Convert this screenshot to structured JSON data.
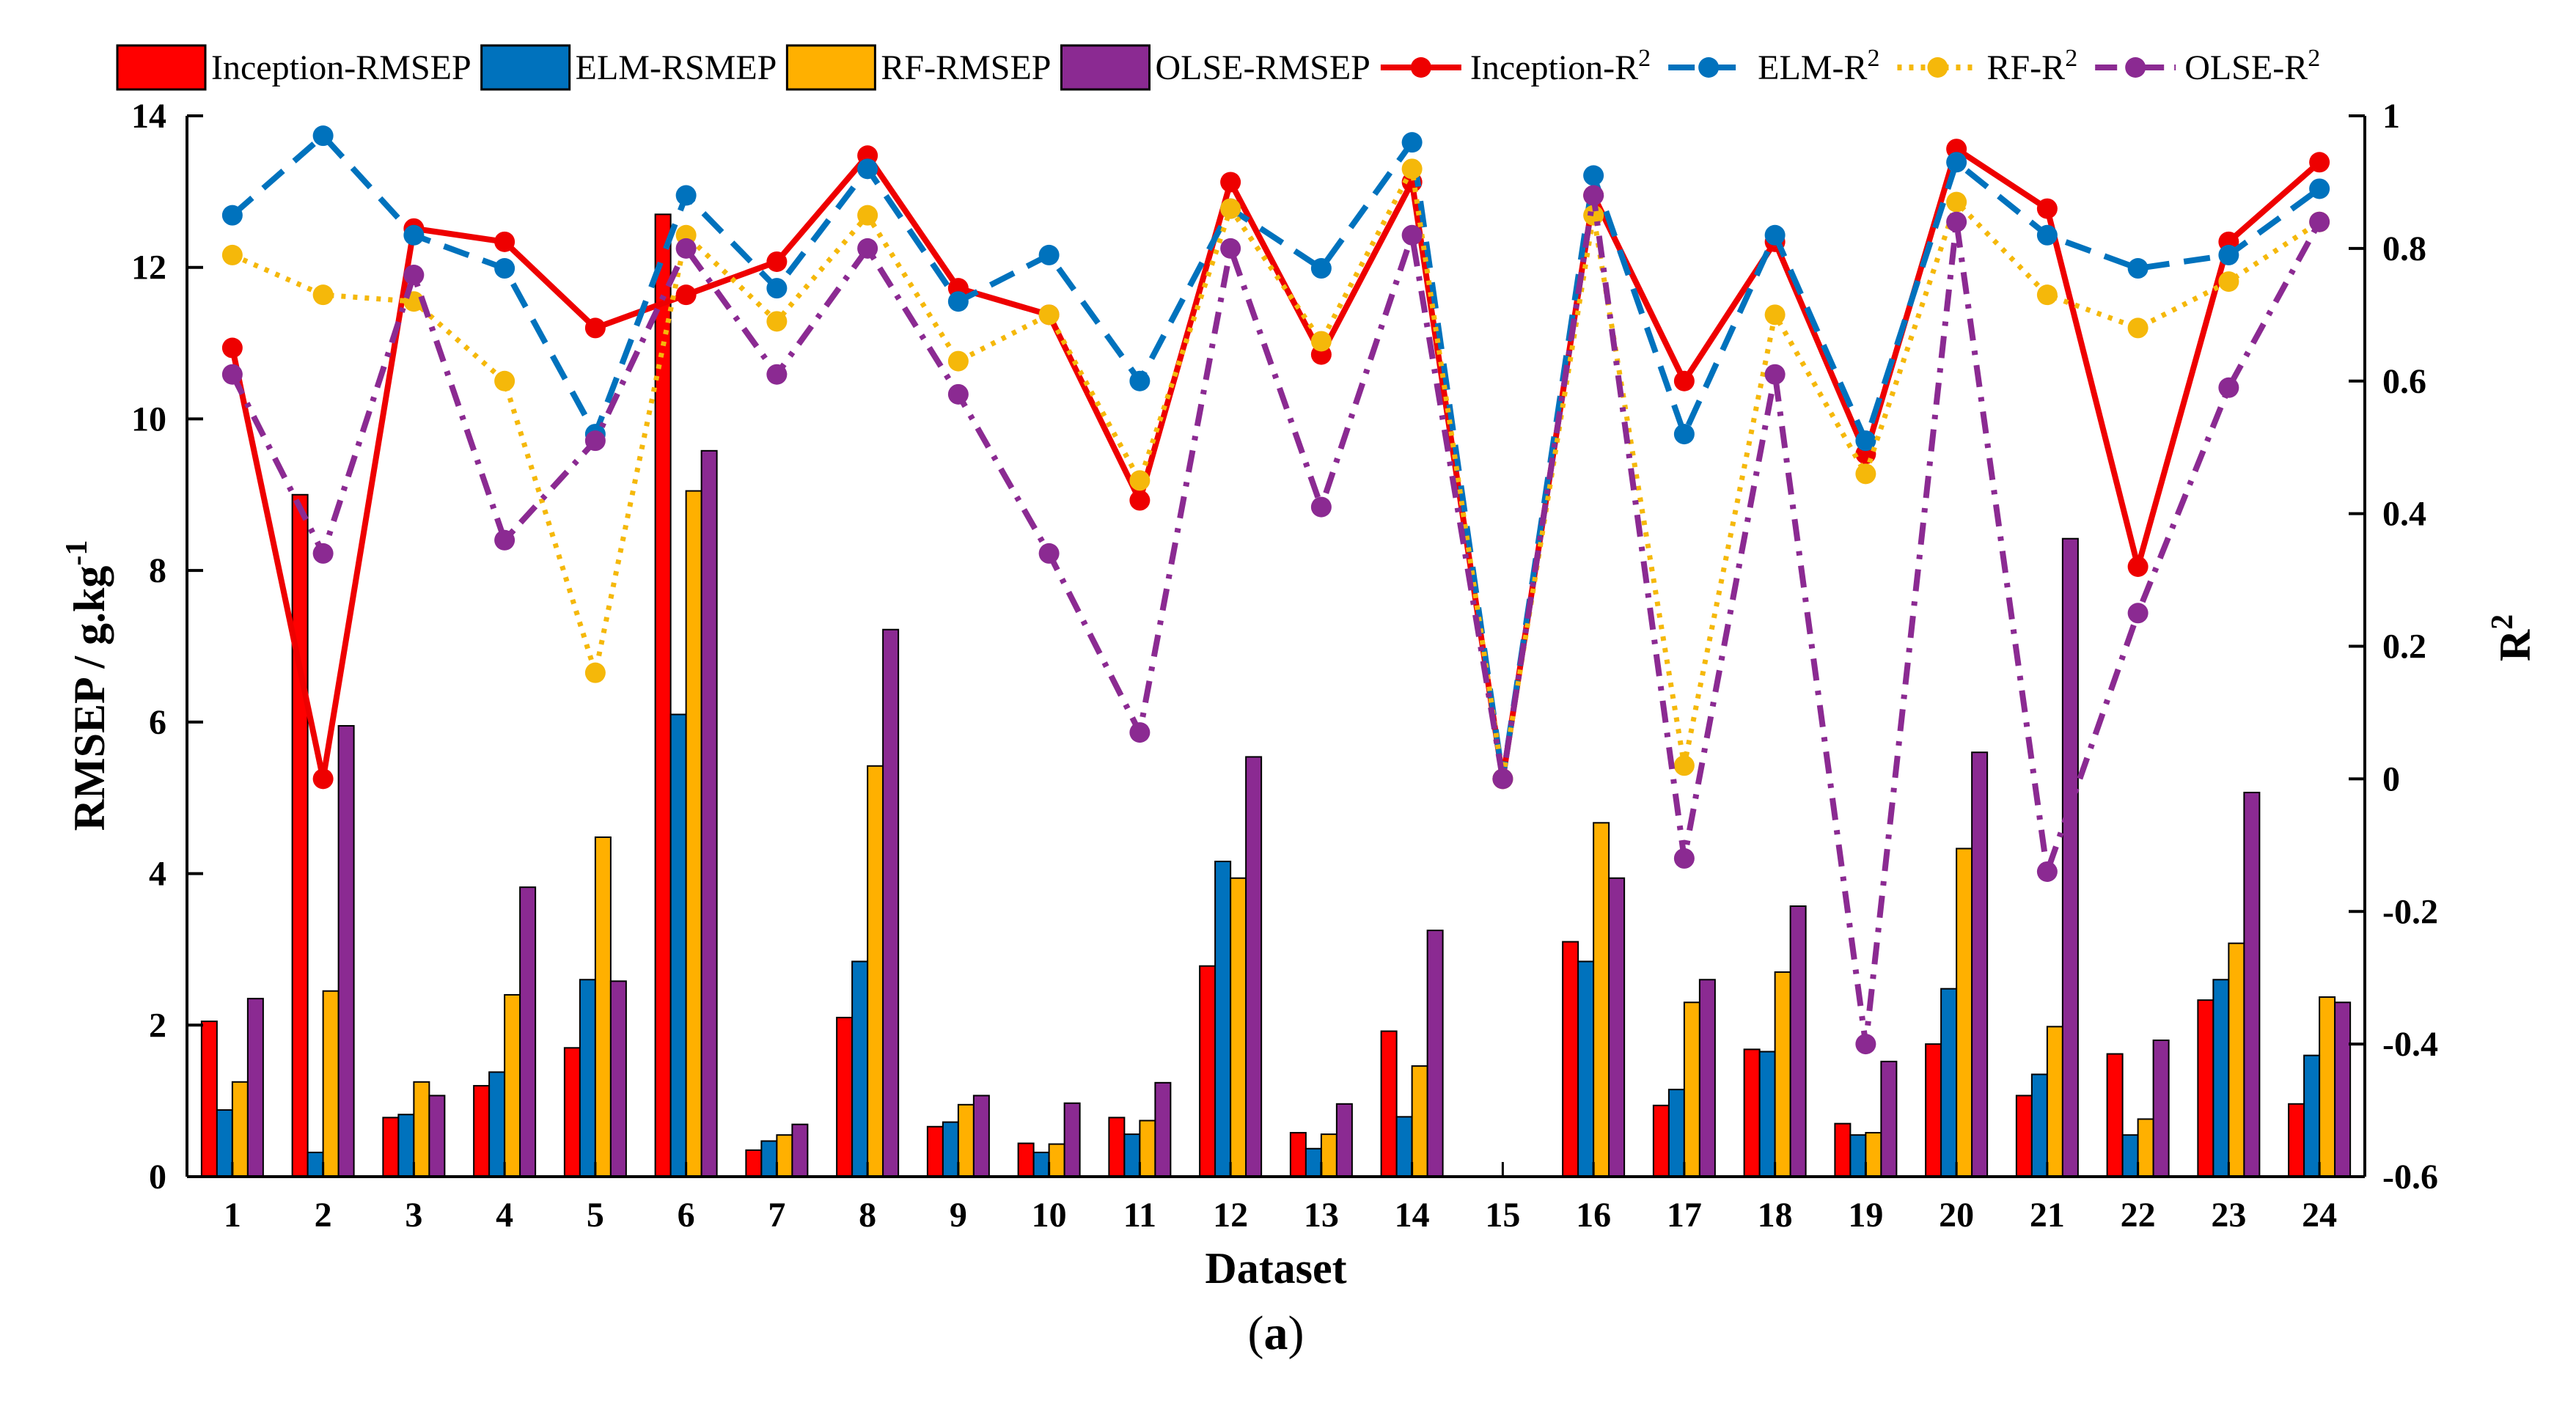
{
  "chart_data": {
    "type": "bar+line",
    "xlabel": "Dataset",
    "ylabel_left": "RMSEP / g.kg",
    "ylabel_left_sup": "-1",
    "ylabel_right": "R",
    "ylabel_right_sup": "2",
    "caption": {
      "open": "(",
      "letter": "a",
      "close": ")"
    },
    "ylim_left": [
      0,
      14
    ],
    "ylim_right": [
      -0.6,
      1
    ],
    "left_ticks": [
      0,
      2,
      4,
      6,
      8,
      10,
      12,
      14
    ],
    "right_ticks": [
      "-0.6",
      "-0.4",
      "-0.2",
      "0",
      "0.2",
      "0.4",
      "0.6",
      "0.8",
      "1"
    ],
    "categories": [
      "1",
      "2",
      "3",
      "4",
      "5",
      "6",
      "7",
      "8",
      "9",
      "10",
      "11",
      "12",
      "13",
      "14",
      "15",
      "16",
      "17",
      "18",
      "19",
      "20",
      "21",
      "22",
      "23",
      "24"
    ],
    "bar_series": [
      {
        "name": "Inception-RMSEP",
        "color": "#ff0000",
        "values": [
          2.05,
          9.0,
          0.78,
          1.2,
          1.7,
          12.7,
          0.35,
          2.1,
          0.66,
          0.44,
          0.78,
          2.78,
          0.58,
          1.92,
          0,
          3.1,
          0.94,
          1.68,
          0.7,
          1.75,
          1.07,
          1.62,
          2.33,
          0.96
        ]
      },
      {
        "name": "ELM-RSMEP",
        "color": "#0072bd",
        "values": [
          0.88,
          0.32,
          0.82,
          1.38,
          2.6,
          6.1,
          0.47,
          2.84,
          0.72,
          0.32,
          0.56,
          4.16,
          0.37,
          0.79,
          0,
          2.84,
          1.15,
          1.65,
          0.55,
          2.48,
          1.35,
          0.55,
          2.6,
          1.6
        ]
      },
      {
        "name": "RF-RMSEP",
        "color": "#ffb000",
        "values": [
          1.25,
          2.45,
          1.25,
          2.4,
          4.48,
          9.05,
          0.55,
          5.42,
          0.95,
          0.43,
          0.74,
          3.94,
          0.56,
          1.46,
          0,
          4.67,
          2.3,
          2.7,
          0.58,
          4.33,
          1.98,
          0.76,
          3.08,
          2.37
        ]
      },
      {
        "name": "OLSE-RMSEP",
        "color": "#8b2a92",
        "values": [
          2.35,
          5.95,
          1.07,
          3.82,
          2.58,
          9.58,
          0.69,
          7.22,
          1.07,
          0.97,
          1.24,
          5.54,
          0.96,
          3.25,
          0,
          3.94,
          2.6,
          3.57,
          1.52,
          5.6,
          8.42,
          1.8,
          5.07,
          2.3
        ]
      }
    ],
    "line_series": [
      {
        "name": "Inception-R",
        "sup": "2",
        "color": "#ee0000",
        "style": "solid",
        "values": [
          0.65,
          0.0,
          0.83,
          0.81,
          0.68,
          0.73,
          0.78,
          0.94,
          0.74,
          0.7,
          0.42,
          0.9,
          0.64,
          0.9,
          0.0,
          0.88,
          0.6,
          0.81,
          0.49,
          0.95,
          0.86,
          0.32,
          0.81,
          0.93
        ]
      },
      {
        "name": "ELM-R",
        "sup": "2",
        "color": "#0072bd",
        "style": "dashed",
        "values": [
          0.85,
          0.97,
          0.82,
          0.77,
          0.52,
          0.88,
          0.74,
          0.92,
          0.72,
          0.79,
          0.6,
          0.86,
          0.77,
          0.96,
          0.0,
          0.91,
          0.52,
          0.82,
          0.51,
          0.93,
          0.82,
          0.77,
          0.79,
          0.89
        ]
      },
      {
        "name": "RF-R",
        "sup": "2",
        "color": "#f5b80a",
        "style": "dotted",
        "values": [
          0.79,
          0.73,
          0.72,
          0.6,
          0.16,
          0.82,
          0.69,
          0.85,
          0.63,
          0.7,
          0.45,
          0.86,
          0.66,
          0.92,
          0.0,
          0.85,
          0.02,
          0.7,
          0.46,
          0.87,
          0.73,
          0.68,
          0.75,
          0.84
        ]
      },
      {
        "name": "OLSE-R",
        "sup": "2",
        "color": "#8b2a92",
        "style": "dashdot",
        "values": [
          0.61,
          0.34,
          0.76,
          0.36,
          0.51,
          0.8,
          0.61,
          0.8,
          0.58,
          0.34,
          0.07,
          0.8,
          0.41,
          0.82,
          0.0,
          0.88,
          -0.12,
          0.61,
          -0.4,
          0.84,
          -0.14,
          0.25,
          0.59,
          0.84
        ]
      }
    ]
  }
}
